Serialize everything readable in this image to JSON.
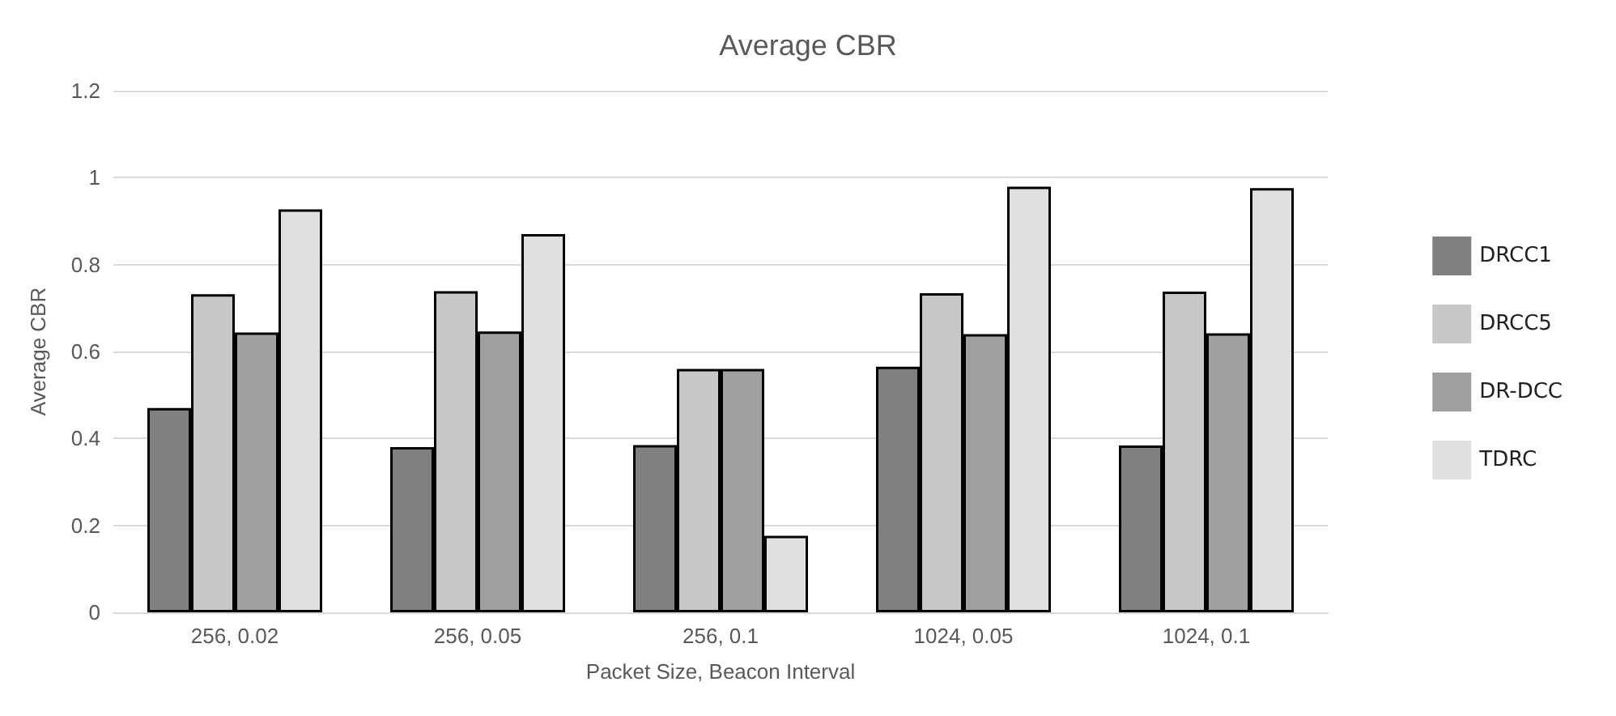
{
  "chart_data": {
    "type": "bar",
    "title": "Average CBR",
    "xlabel": "Packet Size, Beacon Interval",
    "ylabel": "Average CBR",
    "categories": [
      "256, 0.02",
      "256, 0.05",
      "256, 0.1",
      "1024, 0.05",
      "1024, 0.1"
    ],
    "series": [
      {
        "name": "DRCC1",
        "color": "#808080",
        "values": [
          0.47,
          0.38,
          0.385,
          0.565,
          0.384
        ]
      },
      {
        "name": "DRCC5",
        "color": "#c8c8c8",
        "values": [
          0.732,
          0.739,
          0.56,
          0.734,
          0.738
        ]
      },
      {
        "name": "DR-DCC",
        "color": "#a0a0a0",
        "values": [
          0.644,
          0.646,
          0.56,
          0.64,
          0.642
        ]
      },
      {
        "name": "TDRC",
        "color": "#e0e0e0",
        "values": [
          0.927,
          0.87,
          0.176,
          0.979,
          0.976
        ]
      }
    ],
    "ylim": [
      0,
      1.2
    ],
    "yticks": [
      0,
      0.2,
      0.4,
      0.6,
      0.8,
      1,
      1.2
    ],
    "grid": "y",
    "legend": "right"
  }
}
